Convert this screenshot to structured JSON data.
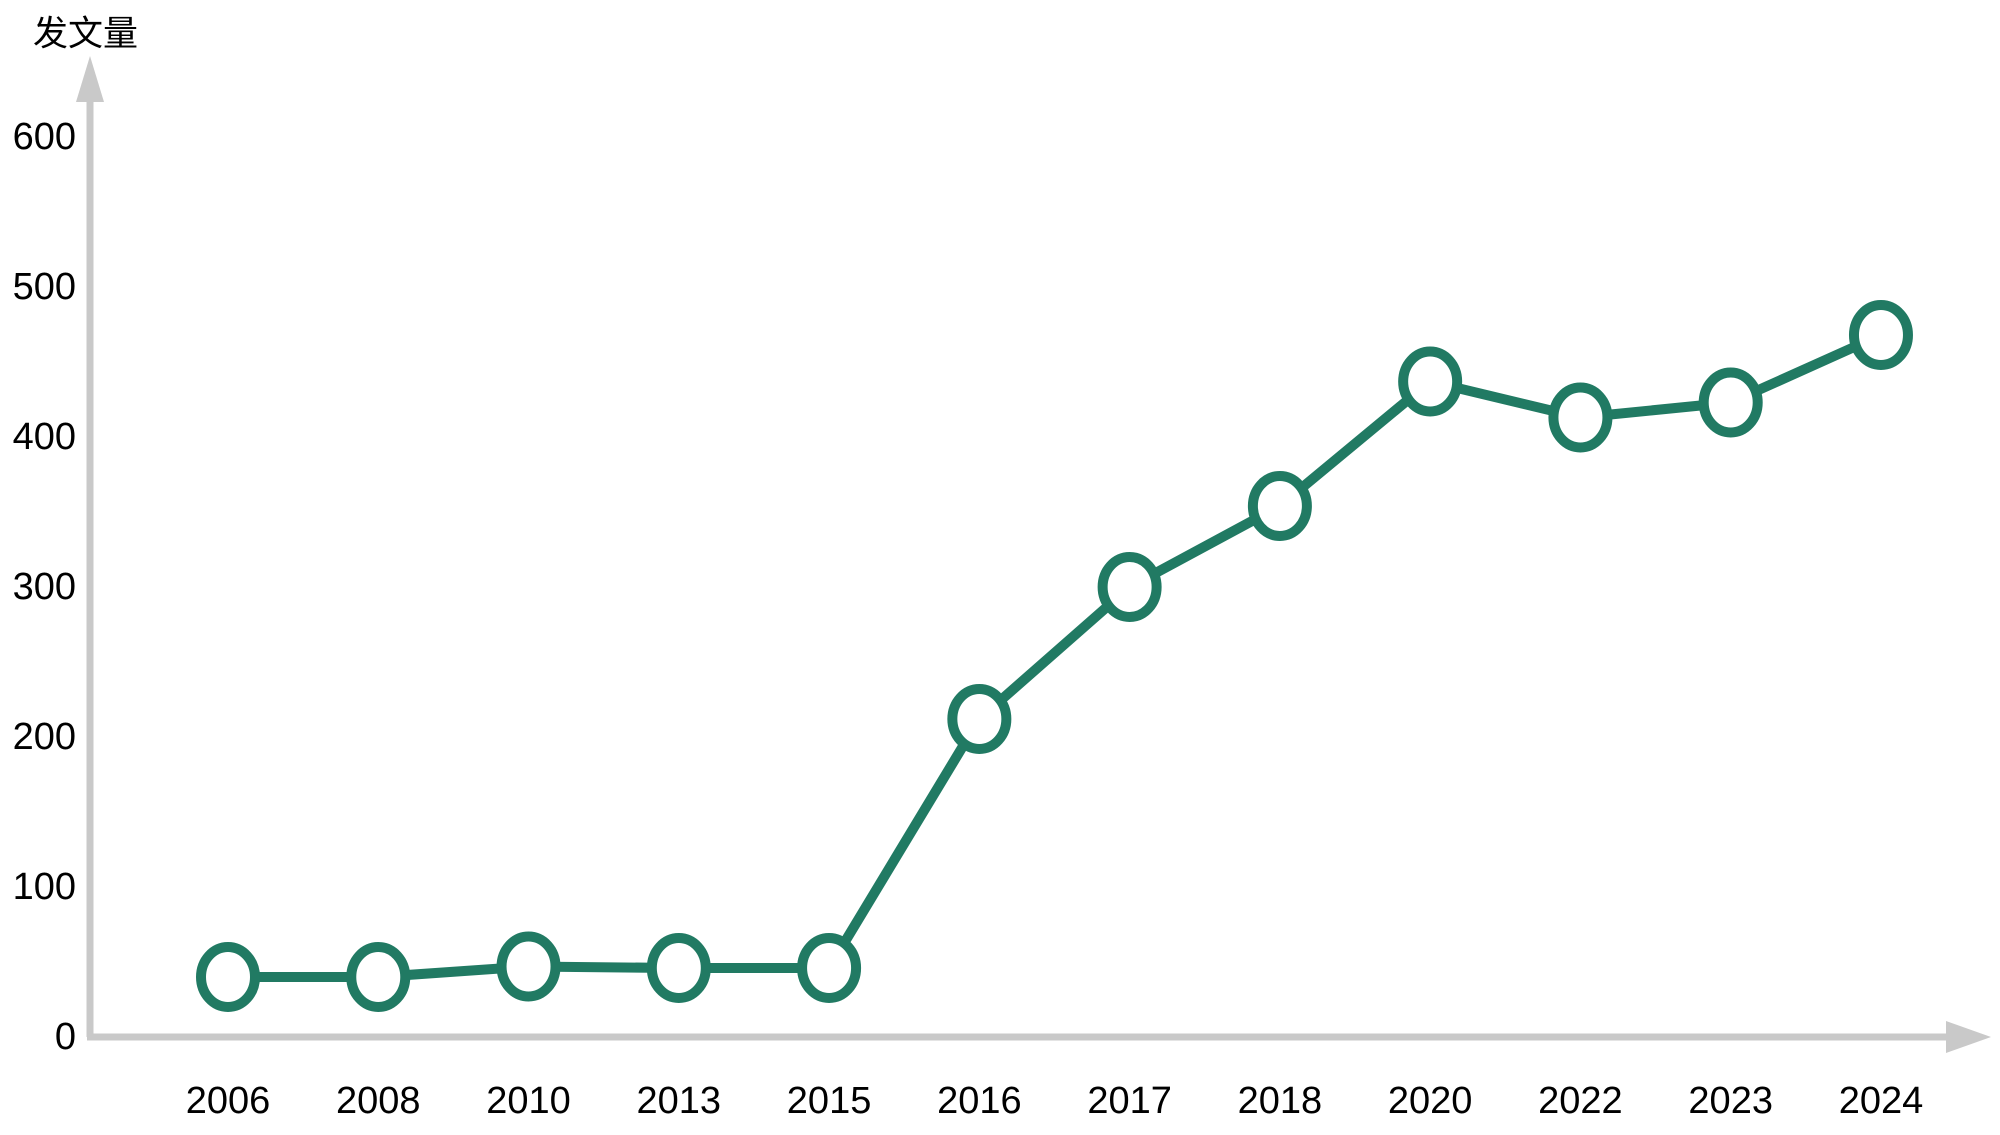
{
  "chart_data": {
    "type": "line",
    "title": "",
    "ylabel": "发文量",
    "xlabel": "",
    "categories": [
      "2006",
      "2008",
      "2010",
      "2013",
      "2015",
      "2016",
      "2017",
      "2018",
      "2020",
      "2022",
      "2023",
      "2024"
    ],
    "series": [
      {
        "name": "发文量",
        "values": [
          40,
          40,
          47,
          46,
          46,
          212,
          300,
          354,
          437,
          413,
          423,
          468
        ]
      }
    ],
    "yticks": [
      0,
      100,
      200,
      300,
      400,
      500,
      600
    ],
    "ylim": [
      0,
      600
    ],
    "grid": false,
    "legend_position": "none",
    "marker_style": "open-circle",
    "colors": {
      "line": "#217a63",
      "marker_fill": "#ffffff",
      "axis": "#c9c9c9",
      "text": "#000000",
      "background": "#ffffff"
    }
  }
}
